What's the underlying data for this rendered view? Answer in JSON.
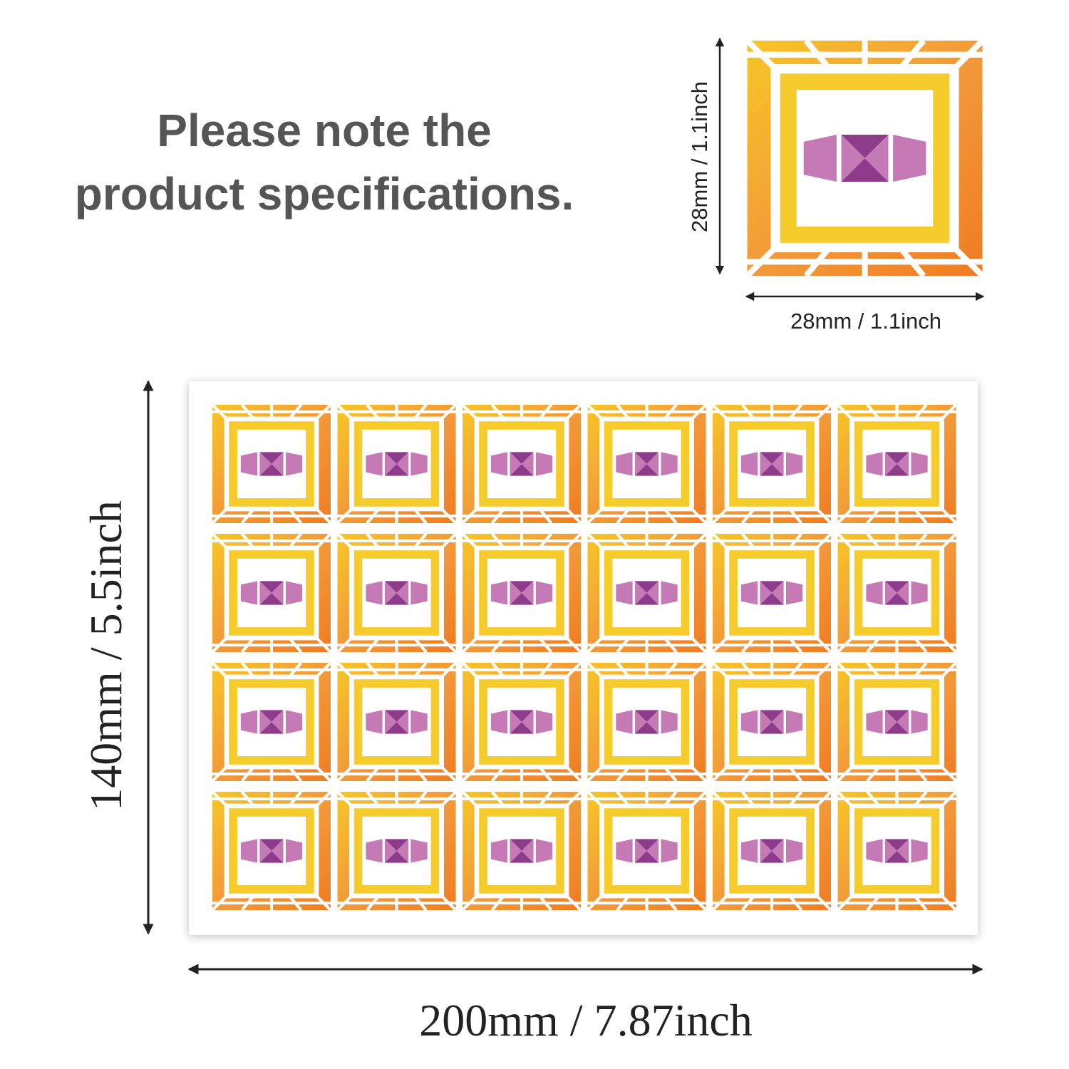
{
  "heading": {
    "lines": [
      "Please note the",
      "product specifications."
    ]
  },
  "sticker": {
    "height_label": "28mm / 1.1inch",
    "width_label": "28mm / 1.1inch"
  },
  "sheet": {
    "height_label": "140mm / 5.5inch",
    "width_label": "200mm / 7.87inch"
  }
}
